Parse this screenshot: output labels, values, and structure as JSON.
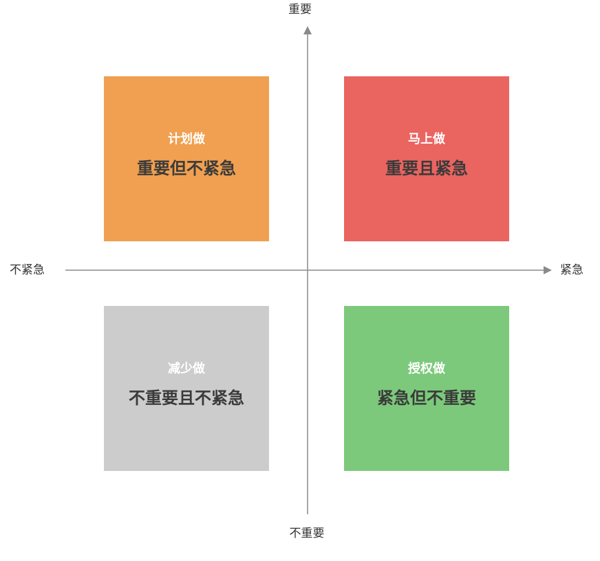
{
  "axes": {
    "top": "重要",
    "bottom": "不重要",
    "left": "不紧急",
    "right": "紧急"
  },
  "colors": {
    "axis": "#8a8a8a",
    "top_left": "#F0A050",
    "top_right": "#EA6460",
    "bottom_left": "#CCCCCC",
    "bottom_right": "#7CC97C"
  },
  "quadrants": {
    "top_left": {
      "action": "计划做",
      "description": "重要但不紧急"
    },
    "top_right": {
      "action": "马上做",
      "description": "重要且紧急"
    },
    "bottom_left": {
      "action": "减少做",
      "description": "不重要且不紧急"
    },
    "bottom_right": {
      "action": "授权做",
      "description": "紧急但不重要"
    }
  }
}
